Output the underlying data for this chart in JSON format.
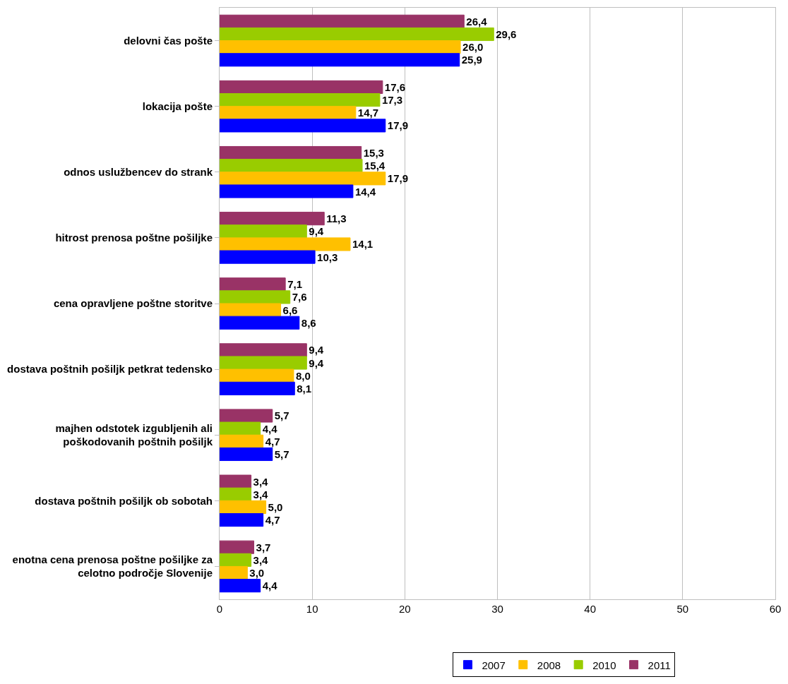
{
  "chart_data": {
    "type": "bar",
    "orientation": "horizontal",
    "categories": [
      "delovni čas pošte",
      "lokacija pošte",
      "odnos uslužbencev do strank",
      "hitrost prenosa poštne pošiljke",
      "cena opravljene poštne storitve",
      "dostava poštnih pošiljk petkrat tedensko",
      "majhen odstotek izgubljenih ali poškodovanih poštnih pošiljk",
      "dostava poštnih pošiljk ob sobotah",
      "enotna cena prenosa poštne pošiljke za celotno področje Slovenije"
    ],
    "series": [
      {
        "name": "2007",
        "color": "#0000ff",
        "values": [
          25.9,
          17.9,
          14.4,
          10.3,
          8.6,
          8.1,
          5.7,
          4.7,
          4.4
        ],
        "value_labels": [
          "25,9",
          "17,9",
          "14,4",
          "10,3",
          "8,6",
          "8,1",
          "5,7",
          "4,7",
          "4,4"
        ]
      },
      {
        "name": "2008",
        "color": "#ffc000",
        "values": [
          26.0,
          14.7,
          17.9,
          14.1,
          6.6,
          8.0,
          4.7,
          5.0,
          3.0
        ],
        "value_labels": [
          "26,0",
          "14,7",
          "17,9",
          "14,1",
          "6,6",
          "8,0",
          "4,7",
          "5,0",
          "3,0"
        ]
      },
      {
        "name": "2010",
        "color": "#99cc00",
        "values": [
          29.6,
          17.3,
          15.4,
          9.4,
          7.6,
          9.4,
          4.4,
          3.4,
          3.4
        ],
        "value_labels": [
          "29,6",
          "17,3",
          "15,4",
          "9,4",
          "7,6",
          "9,4",
          "4,4",
          "3,4",
          "3,4"
        ]
      },
      {
        "name": "2011",
        "color": "#993366",
        "values": [
          26.4,
          17.6,
          15.3,
          11.3,
          7.1,
          9.4,
          5.7,
          3.4,
          3.7
        ],
        "value_labels": [
          "26,4",
          "17,6",
          "15,3",
          "11,3",
          "7,1",
          "9,4",
          "5,7",
          "3,4",
          "3,7"
        ]
      }
    ],
    "xlim": [
      0,
      60
    ],
    "xticks": [
      0,
      10,
      20,
      30,
      40,
      50,
      60
    ],
    "grid": "x",
    "legend": "bottom"
  }
}
